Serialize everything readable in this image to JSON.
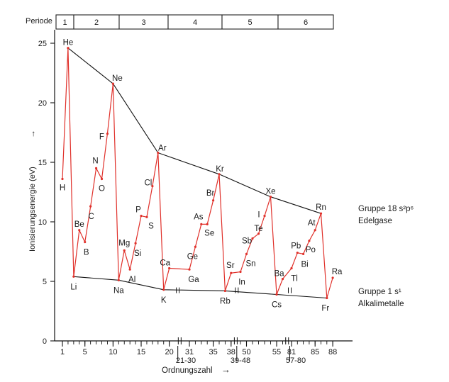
{
  "chart_data": {
    "type": "line",
    "ylabel": "Ionisierungsenergie (eV)",
    "ylabel_arrow": "→",
    "xlabel": "Ordnungszahl",
    "xlabel_arrow": "→",
    "ylim": [
      0,
      25.5
    ],
    "yticks": [
      0,
      5,
      10,
      15,
      20,
      25
    ],
    "x_tick_labels": [
      "1",
      "5",
      "10",
      "15",
      "20",
      "31",
      "35",
      "38",
      "50",
      "55",
      "81",
      "85",
      "88"
    ],
    "x_gap_labels": [
      "21-30",
      "39-48",
      "57-80"
    ],
    "periods": {
      "label": "Periode",
      "items": [
        "1",
        "2",
        "3",
        "4",
        "5",
        "6"
      ]
    },
    "series": [
      {
        "color": "#e0302a",
        "points": [
          {
            "x": "1",
            "label": "H",
            "y": 13.6
          },
          {
            "x": "2",
            "label": "He",
            "y": 24.6
          },
          {
            "x": "3",
            "label": "Li",
            "y": 5.4
          },
          {
            "x": "4",
            "label": "Be",
            "y": 9.3
          },
          {
            "x": "5",
            "label": "B",
            "y": 8.3
          },
          {
            "x": "6",
            "label": "C",
            "y": 11.3
          },
          {
            "x": "7",
            "label": "N",
            "y": 14.5
          },
          {
            "x": "8",
            "label": "O",
            "y": 13.6
          },
          {
            "x": "9",
            "label": "F",
            "y": 17.4
          },
          {
            "x": "10",
            "label": "Ne",
            "y": 21.6
          },
          {
            "x": "11",
            "label": "Na",
            "y": 5.1
          },
          {
            "x": "12",
            "label": "Mg",
            "y": 7.6
          },
          {
            "x": "13",
            "label": "Al",
            "y": 6.0
          },
          {
            "x": "14",
            "label": "Si",
            "y": 8.2
          },
          {
            "x": "15",
            "label": "P",
            "y": 10.5
          },
          {
            "x": "16",
            "label": "S",
            "y": 10.4
          },
          {
            "x": "17",
            "label": "Cl",
            "y": 13.0
          },
          {
            "x": "18",
            "label": "Ar",
            "y": 15.8
          },
          {
            "x": "19",
            "label": "K",
            "y": 4.3
          },
          {
            "x": "20",
            "label": "Ca",
            "y": 6.1
          },
          {
            "x": "31",
            "label": "Ga",
            "y": 6.0
          },
          {
            "x": "32",
            "label": "Ge",
            "y": 7.9
          },
          {
            "x": "33",
            "label": "As",
            "y": 9.8
          },
          {
            "x": "34",
            "label": "Se",
            "y": 9.8
          },
          {
            "x": "35",
            "label": "Br",
            "y": 11.8
          },
          {
            "x": "36",
            "label": "Kr",
            "y": 14.0
          },
          {
            "x": "37",
            "label": "Rb",
            "y": 4.2
          },
          {
            "x": "38",
            "label": "Sr",
            "y": 5.7
          },
          {
            "x": "49",
            "label": "In",
            "y": 5.8
          },
          {
            "x": "50",
            "label": "Sn",
            "y": 7.3
          },
          {
            "x": "51",
            "label": "Sb",
            "y": 8.6
          },
          {
            "x": "52",
            "label": "Te",
            "y": 9.0
          },
          {
            "x": "53",
            "label": "I",
            "y": 10.5
          },
          {
            "x": "54",
            "label": "Xe",
            "y": 12.1
          },
          {
            "x": "55",
            "label": "Cs",
            "y": 3.9
          },
          {
            "x": "56",
            "label": "Ba",
            "y": 5.2
          },
          {
            "x": "81",
            "label": "Tl",
            "y": 6.1
          },
          {
            "x": "82",
            "label": "Pb",
            "y": 7.4
          },
          {
            "x": "83",
            "label": "Bi",
            "y": 7.3
          },
          {
            "x": "84",
            "label": "Po",
            "y": 8.4
          },
          {
            "x": "85",
            "label": "At",
            "y": 9.3
          },
          {
            "x": "86",
            "label": "Rn",
            "y": 10.7
          },
          {
            "x": "87",
            "label": "Fr",
            "y": 3.6
          },
          {
            "x": "88",
            "label": "Ra",
            "y": 5.3
          }
        ]
      }
    ],
    "envelopes": [
      {
        "line1": "Gruppe 18 s²p⁶",
        "line2": "Edelgase",
        "members": [
          "He",
          "Ne",
          "Ar",
          "Kr",
          "Xe",
          "Rn"
        ]
      },
      {
        "line1": "Gruppe 1 s¹",
        "line2": "Alkalimetalle",
        "members": [
          "Li",
          "Na",
          "K",
          "Rb",
          "Cs",
          "Fr"
        ]
      }
    ]
  }
}
